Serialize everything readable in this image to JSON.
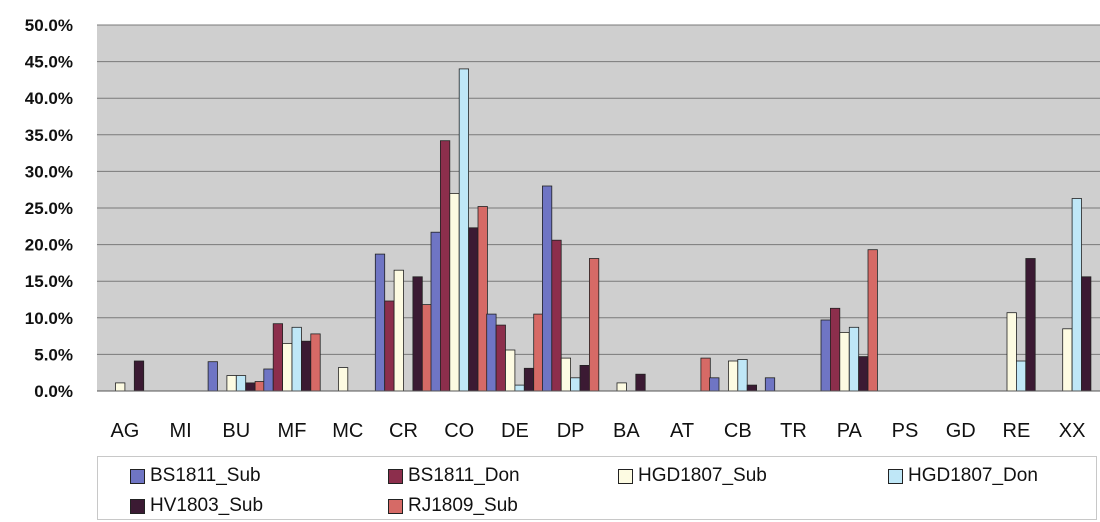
{
  "chart_data": {
    "type": "bar",
    "title": "",
    "xlabel": "",
    "ylabel": "",
    "ylim": [
      0,
      50
    ],
    "grid": true,
    "legend_position": "bottom",
    "y_ticks": [
      "0.0%",
      "5.0%",
      "10.0%",
      "15.0%",
      "20.0%",
      "25.0%",
      "30.0%",
      "35.0%",
      "40.0%",
      "45.0%",
      "50.0%"
    ],
    "categories": [
      "AG",
      "MI",
      "BU",
      "MF",
      "MC",
      "CR",
      "CO",
      "DE",
      "DP",
      "BA",
      "AT",
      "CB",
      "TR",
      "PA",
      "PS",
      "GD",
      "RE",
      "XX"
    ],
    "series": [
      {
        "name": "BS1811_Sub",
        "color": "#6f75c4",
        "values": [
          0,
          0,
          4.0,
          3.0,
          0,
          18.7,
          21.7,
          10.5,
          28.0,
          0,
          0,
          1.8,
          1.8,
          9.7,
          0,
          0,
          0,
          0
        ]
      },
      {
        "name": "BS1811_Don",
        "color": "#8c2e4c",
        "values": [
          0,
          0,
          0,
          9.2,
          0,
          12.3,
          34.2,
          9.0,
          20.6,
          0,
          0,
          0,
          0,
          11.3,
          0,
          0,
          0,
          0
        ]
      },
      {
        "name": "HGD1807_Sub",
        "color": "#fdfbe2",
        "values": [
          1.1,
          0,
          2.1,
          6.5,
          3.2,
          16.5,
          27.0,
          5.6,
          4.5,
          1.1,
          0,
          4.1,
          0,
          8.0,
          0,
          0,
          10.7,
          8.5
        ]
      },
      {
        "name": "HGD1807_Don",
        "color": "#bfe7f7",
        "values": [
          0,
          0,
          2.1,
          8.7,
          0,
          0,
          44.0,
          0.8,
          1.8,
          0,
          0,
          4.3,
          0,
          8.7,
          0,
          0,
          4.1,
          26.3
        ]
      },
      {
        "name": "HV1803_Sub",
        "color": "#3b1a33",
        "values": [
          4.1,
          0,
          1.1,
          6.8,
          0,
          15.6,
          22.3,
          3.1,
          3.5,
          2.3,
          0,
          0.8,
          0,
          4.7,
          0,
          0,
          18.1,
          15.6
        ]
      },
      {
        "name": "RJ1809_Sub",
        "color": "#d66a66",
        "values": [
          0,
          0,
          1.3,
          7.8,
          0,
          11.8,
          25.2,
          10.5,
          18.1,
          0,
          4.5,
          0,
          0,
          19.3,
          0,
          0,
          0,
          0
        ]
      }
    ]
  }
}
